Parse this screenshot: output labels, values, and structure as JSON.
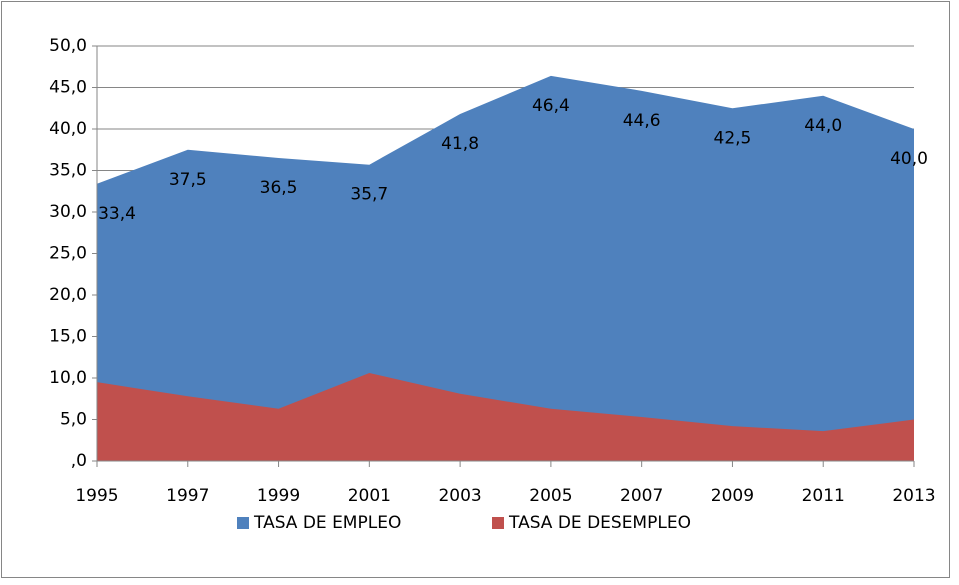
{
  "chart_data": {
    "type": "area",
    "categories": [
      "1995",
      "1997",
      "1999",
      "2001",
      "2003",
      "2005",
      "2007",
      "2009",
      "2011",
      "2013"
    ],
    "series": [
      {
        "name": "TASA DE EMPLEO",
        "color": "#4f81bd",
        "values": [
          33.4,
          37.5,
          36.5,
          35.7,
          41.8,
          46.4,
          44.6,
          42.5,
          44.0,
          40.0
        ],
        "value_labels": [
          "33,4",
          "37,5",
          "36,5",
          "35,7",
          "41,8",
          "46,4",
          "44,6",
          "42,5",
          "44,0",
          "40,0"
        ]
      },
      {
        "name": "TASA DE DESEMPLEO",
        "color": "#c0504d",
        "values": [
          9.5,
          7.8,
          6.3,
          10.6,
          8.1,
          6.3,
          5.3,
          4.2,
          3.6,
          5.0
        ]
      }
    ],
    "ylim": [
      0,
      50
    ],
    "yticks": [
      {
        "value": 0,
        "label": ",0"
      },
      {
        "value": 5,
        "label": "5,0"
      },
      {
        "value": 10,
        "label": "10,0"
      },
      {
        "value": 15,
        "label": "15,0"
      },
      {
        "value": 20,
        "label": "20,0"
      },
      {
        "value": 25,
        "label": "25,0"
      },
      {
        "value": 30,
        "label": "30,0"
      },
      {
        "value": 35,
        "label": "35,0"
      },
      {
        "value": 40,
        "label": "40,0"
      },
      {
        "value": 45,
        "label": "45,0"
      },
      {
        "value": 50,
        "label": "50,0"
      }
    ],
    "grid": true,
    "legend": "bottom"
  }
}
